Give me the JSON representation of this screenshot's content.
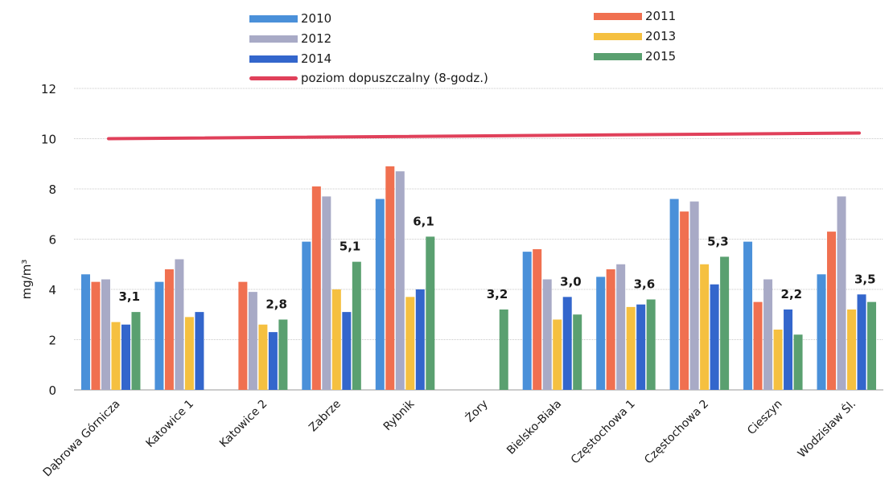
{
  "chart_data": {
    "type": "bar",
    "ylabel": "mg/m³",
    "ylim": [
      0,
      12
    ],
    "yticks": [
      "0",
      "2",
      "4",
      "6",
      "8",
      "10",
      "12"
    ],
    "grid": true,
    "legend_position": "top",
    "categories": [
      "Dąbrowa Górnicza",
      "Katowice 1",
      "Katowice 2",
      "Zabrze",
      "Rybnik",
      "Żory",
      "Bielsko-Biała",
      "Częstochowa 1",
      "Częstochowa 2",
      "Cieszyn",
      "Wodzisław Śl."
    ],
    "series": [
      {
        "name": "2010",
        "color": "#4a90d9",
        "values": [
          4.6,
          4.3,
          null,
          5.9,
          7.6,
          null,
          5.5,
          4.5,
          7.6,
          5.9,
          4.6
        ]
      },
      {
        "name": "2011",
        "color": "#f07050",
        "values": [
          4.3,
          4.8,
          4.3,
          8.1,
          8.9,
          null,
          5.6,
          4.8,
          7.1,
          3.5,
          6.3
        ]
      },
      {
        "name": "2012",
        "color": "#a8aac6",
        "values": [
          4.4,
          5.2,
          3.9,
          7.7,
          8.7,
          null,
          4.4,
          5.0,
          7.5,
          4.4,
          7.7
        ]
      },
      {
        "name": "2013",
        "color": "#f5c040",
        "values": [
          2.7,
          2.9,
          2.6,
          4.0,
          3.7,
          null,
          2.8,
          3.3,
          5.0,
          2.4,
          3.2
        ]
      },
      {
        "name": "2014",
        "color": "#3366cc",
        "values": [
          2.6,
          3.1,
          2.3,
          3.1,
          4.0,
          null,
          3.7,
          3.4,
          4.2,
          3.2,
          3.8
        ]
      },
      {
        "name": "2015",
        "color": "#5aa070",
        "values": [
          3.1,
          null,
          2.8,
          5.1,
          6.1,
          3.2,
          3.0,
          3.6,
          5.3,
          2.2,
          3.5
        ]
      }
    ],
    "data_labels": [
      {
        "category": "Dąbrowa Górnicza",
        "text": "3,1"
      },
      {
        "category": "Katowice 2",
        "text": "2,8"
      },
      {
        "category": "Zabrze",
        "text": "5,1"
      },
      {
        "category": "Rybnik",
        "text": "6,1"
      },
      {
        "category": "Żory",
        "text": "3,2"
      },
      {
        "category": "Bielsko-Biała",
        "text": "3,0"
      },
      {
        "category": "Częstochowa 1",
        "text": "3,6"
      },
      {
        "category": "Częstochowa 2",
        "text": "5,3"
      },
      {
        "category": "Cieszyn",
        "text": "2,2"
      },
      {
        "category": "Wodzisław Śl.",
        "text": "3,5"
      }
    ],
    "reference_line": {
      "name": "poziom dopuszczalny (8-godz.)",
      "value": 10,
      "color": "#e0405a"
    }
  }
}
